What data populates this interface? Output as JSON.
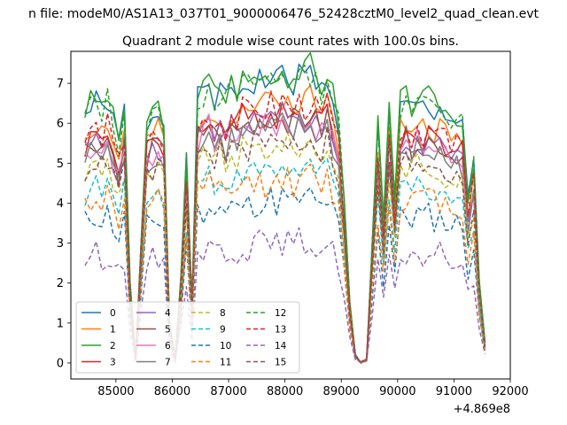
{
  "figure": {
    "suptitle": "n file: modeM0/AS1A13_037T01_9000006476_52428cztM0_level2_quad_clean.evt",
    "title": "Quadrant 2 module wise count rates with 100.0s bins.",
    "offset_label": "+4.869e8"
  },
  "chart_data": {
    "type": "line",
    "title": "Quadrant 2 module wise count rates with 100.0s bins.",
    "xlabel": "",
    "ylabel": "",
    "x_offset": 486900000,
    "xlim": [
      84200,
      92000
    ],
    "ylim": [
      -0.4,
      7.8
    ],
    "xticks": [
      85000,
      86000,
      87000,
      88000,
      89000,
      90000,
      91000,
      92000
    ],
    "yticks": [
      0,
      1,
      2,
      3,
      4,
      5,
      6,
      7
    ],
    "xtick_labels": [
      "85000",
      "86000",
      "87000",
      "88000",
      "89000",
      "90000",
      "91000",
      "92000"
    ],
    "ytick_labels": [
      "0",
      "1",
      "2",
      "3",
      "4",
      "5",
      "6",
      "7"
    ],
    "grid": false,
    "legend_position": "lower-left",
    "legend_columns": 4,
    "x_start": 84450,
    "x_step": 100,
    "envelope": [
      6.2,
      6.4,
      6.5,
      6.3,
      6.6,
      6.0,
      5.5,
      6.3,
      2.0,
      0.1,
      3.0,
      6.0,
      6.2,
      6.3,
      6.0,
      1.0,
      0.1,
      2.0,
      5.0,
      1.5,
      6.6,
      6.7,
      7.0,
      6.6,
      6.8,
      6.5,
      6.9,
      6.7,
      7.0,
      6.9,
      7.0,
      7.1,
      7.0,
      7.2,
      7.0,
      7.3,
      7.1,
      7.0,
      7.2,
      7.1,
      7.3,
      7.0,
      6.8,
      7.2,
      6.6,
      6.0,
      4.0,
      1.5,
      0.2,
      0.0,
      0.1,
      3.0,
      5.8,
      3.5,
      6.2,
      4.0,
      6.4,
      6.5,
      6.3,
      6.6,
      6.4,
      6.5,
      6.3,
      6.4,
      6.2,
      6.0,
      6.1,
      6.0,
      4.0,
      5.0,
      2.0,
      0.5
    ],
    "series": [
      {
        "name": "0",
        "scale": 1.0,
        "noise_seed": 1,
        "color": "#1f77b4",
        "dashed": false
      },
      {
        "name": "1",
        "scale": 0.92,
        "noise_seed": 2,
        "color": "#ff7f0e",
        "dashed": false
      },
      {
        "name": "2",
        "scale": 1.02,
        "noise_seed": 3,
        "color": "#2ca02c",
        "dashed": false
      },
      {
        "name": "3",
        "scale": 0.88,
        "noise_seed": 4,
        "color": "#d62728",
        "dashed": false
      },
      {
        "name": "4",
        "scale": 0.85,
        "noise_seed": 5,
        "color": "#9467bd",
        "dashed": false
      },
      {
        "name": "5",
        "scale": 0.86,
        "noise_seed": 6,
        "color": "#8c564b",
        "dashed": false
      },
      {
        "name": "6",
        "scale": 0.84,
        "noise_seed": 7,
        "color": "#e377c2",
        "dashed": false
      },
      {
        "name": "7",
        "scale": 0.82,
        "noise_seed": 8,
        "color": "#7f7f7f",
        "dashed": false
      },
      {
        "name": "8",
        "scale": 0.76,
        "noise_seed": 9,
        "color": "#bcbd22",
        "dashed": true
      },
      {
        "name": "9",
        "scale": 0.68,
        "noise_seed": 10,
        "color": "#17becf",
        "dashed": true
      },
      {
        "name": "10",
        "scale": 0.57,
        "noise_seed": 11,
        "color": "#1f77b4",
        "dashed": true
      },
      {
        "name": "11",
        "scale": 0.64,
        "noise_seed": 12,
        "color": "#ff7f0e",
        "dashed": true
      },
      {
        "name": "12",
        "scale": 1.0,
        "noise_seed": 13,
        "color": "#2ca02c",
        "dashed": true
      },
      {
        "name": "13",
        "scale": 0.9,
        "noise_seed": 14,
        "color": "#d62728",
        "dashed": true
      },
      {
        "name": "14",
        "scale": 0.42,
        "noise_seed": 15,
        "color": "#9467bd",
        "dashed": true
      },
      {
        "name": "15",
        "scale": 0.78,
        "noise_seed": 16,
        "color": "#8c564b",
        "dashed": true
      }
    ]
  }
}
